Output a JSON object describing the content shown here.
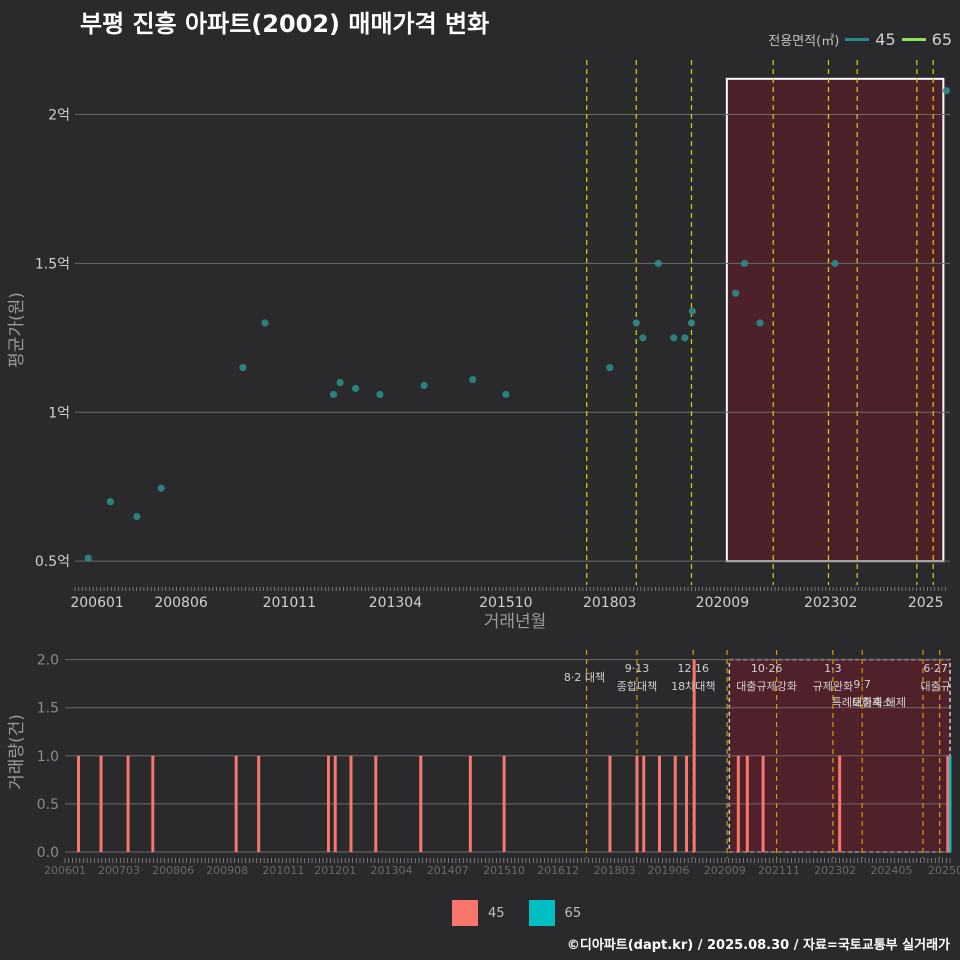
{
  "title": "부평 진흥 아파트(2002) 매매가격 변화",
  "legend": {
    "title": "전용면적(㎡)",
    "items": [
      {
        "label": "45",
        "color": "#2b8c86"
      },
      {
        "label": "65",
        "color": "#8fe35a"
      }
    ]
  },
  "bottom_legend": {
    "items": [
      {
        "label": "45",
        "color": "#f8766d"
      },
      {
        "label": "65",
        "color": "#00bfc4"
      }
    ]
  },
  "footer": "©디아파트(dapt.kr) / 2025.08.30 / 자료=국토교통부 실거래가",
  "chart_data": [
    {
      "type": "scatter",
      "title": "부평 진흥 아파트(2002) 매매가격 변화",
      "xlabel": "거래년월",
      "ylabel": "평균가(원)",
      "x_ticks": [
        "200601",
        "200806",
        "201011",
        "201304",
        "201510",
        "201803",
        "202009",
        "202302",
        "2025"
      ],
      "y_ticks": [
        "0.5억",
        "1억",
        "1.5억",
        "2억"
      ],
      "ylim": [
        0.42,
        2.2
      ],
      "xlim": [
        2006.0,
        2025.8
      ],
      "highlight_range": [
        2020.75,
        2025.65
      ],
      "policy_lines_x": [
        2017.58,
        2018.7,
        2019.95,
        2021.8,
        2023.05,
        2023.7,
        2025.05,
        2025.42
      ],
      "series": [
        {
          "name": "45",
          "x": [
            2006.3,
            2006.8,
            2007.4,
            2007.95,
            2009.8,
            2010.3,
            2011.85,
            2012.0,
            2012.35,
            2012.9,
            2013.9,
            2015.0,
            2015.75,
            2018.1,
            2018.7,
            2018.85,
            2019.2,
            2019.55,
            2019.8,
            2019.95,
            2019.97,
            2020.95,
            2021.15,
            2021.5,
            2023.2,
            2025.72
          ],
          "y": [
            0.51,
            0.7,
            0.65,
            0.745,
            1.15,
            1.3,
            1.06,
            1.1,
            1.08,
            1.06,
            1.09,
            1.11,
            1.06,
            1.15,
            1.3,
            1.25,
            1.5,
            1.25,
            1.25,
            1.3,
            1.34,
            1.4,
            1.5,
            1.3,
            1.5,
            2.08
          ]
        }
      ]
    },
    {
      "type": "bar",
      "xlabel": "",
      "ylabel": "거래량(건)",
      "x_ticks": [
        "200601",
        "200703",
        "200806",
        "200908",
        "201011",
        "201201",
        "201304",
        "201407",
        "201510",
        "201612",
        "201803",
        "201906",
        "202009",
        "202111",
        "202302",
        "202405",
        "20250"
      ],
      "y_ticks": [
        "0.0",
        "0.5",
        "1.0",
        "1.5",
        "2.0"
      ],
      "ylim": [
        0,
        2.1
      ],
      "xlim": [
        2006.0,
        2025.65
      ],
      "highlight_range": [
        2020.75,
        2025.65
      ],
      "series": [
        {
          "name": "45",
          "x": [
            2006.3,
            2006.8,
            2007.4,
            2007.95,
            2009.8,
            2010.3,
            2011.85,
            2012.0,
            2012.35,
            2012.9,
            2013.9,
            2015.0,
            2015.75,
            2018.1,
            2018.7,
            2018.85,
            2019.2,
            2019.55,
            2019.8,
            2019.97,
            2020.95,
            2021.15,
            2021.5,
            2023.2,
            2025.6
          ],
          "values": [
            1,
            1,
            1,
            1,
            1,
            1,
            1,
            1,
            1,
            1,
            1,
            1,
            1,
            1,
            1,
            1,
            1,
            1,
            1,
            2,
            1,
            1,
            1,
            1,
            1
          ]
        },
        {
          "name": "65",
          "x": [
            2025.65
          ],
          "values": [
            1
          ]
        }
      ],
      "policy_events": [
        {
          "x": 2017.58,
          "label": "8·2 대책"
        },
        {
          "x": 2018.7,
          "label": "9·13",
          "sub": "종합대책"
        },
        {
          "x": 2019.95,
          "label": "12·16",
          "sub": "18차대책"
        },
        {
          "x": 2020.7,
          "label": ""
        },
        {
          "x": 2021.8,
          "label": "10·26",
          "sub": "대출규제강화"
        },
        {
          "x": 2023.05,
          "label": "1·3",
          "sub": "규제완화"
        },
        {
          "x": 2023.7,
          "label": "9·7",
          "sub": "특례대출축소"
        },
        {
          "x": 2025.05,
          "label": "",
          "sub": "토허제 해제"
        },
        {
          "x": 2025.42,
          "label": "6·27",
          "sub": "대출규"
        }
      ]
    }
  ]
}
